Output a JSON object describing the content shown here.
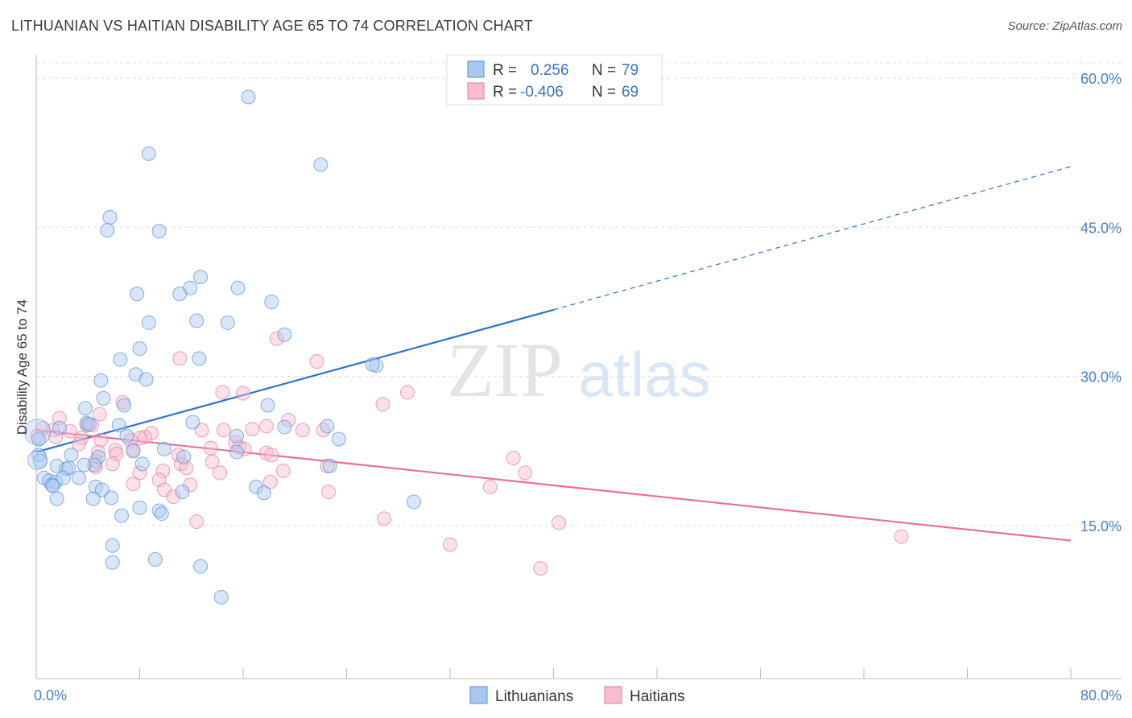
{
  "title": "LITHUANIAN VS HAITIAN DISABILITY AGE 65 TO 74 CORRELATION CHART",
  "source": "Source: ZipAtlas.com",
  "watermark": {
    "zip": "ZIP",
    "atlas": "atlas"
  },
  "legend": {
    "rows": [
      {
        "r_label": "R =",
        "r_value": "0.256",
        "n_label": "N =",
        "n_value": "79",
        "color": "#9dc3f0",
        "border": "#5b8fd6"
      },
      {
        "r_label": "R =",
        "r_value": "-0.406",
        "n_label": "N =",
        "n_value": "69",
        "color": "#f7b8cc",
        "border": "#e57a9f"
      }
    ]
  },
  "bottom_legend": [
    "Lithuanians",
    "Haitians"
  ],
  "colors": {
    "blue_fill": "#a8c8f0",
    "blue_stroke": "#5b8fd6",
    "blue_line": "#2f72cf",
    "pink_fill": "#f7bcd0",
    "pink_stroke": "#e57a9f",
    "pink_line": "#e8709a",
    "grid": "#dddddd",
    "tick_text": "#4a7fc8"
  },
  "chart_data": {
    "type": "scatter",
    "title": "LITHUANIAN VS HAITIAN DISABILITY AGE 65 TO 74 CORRELATION CHART",
    "xlabel": "",
    "ylabel": "Disability Age 65 to 74",
    "xlim": [
      0,
      80
    ],
    "ylim": [
      0,
      62
    ],
    "x_tick_labels": [
      "0.0%",
      "80.0%"
    ],
    "y_ticks": [
      15,
      30,
      45,
      60
    ],
    "y_tick_labels": [
      "15.0%",
      "30.0%",
      "45.0%",
      "60.0%"
    ],
    "grid": true,
    "series": [
      {
        "name": "Lithuanians",
        "r": 0.256,
        "n": 79,
        "trend": {
          "x0": 0,
          "y0": 22.4,
          "x1": 40,
          "y1": 36.7,
          "dashed_to_x": 80,
          "dashed_to_y": 51.1
        },
        "points": [
          [
            16.4,
            58.1
          ],
          [
            22.0,
            51.3
          ],
          [
            8.7,
            52.4
          ],
          [
            5.7,
            46.0
          ],
          [
            5.5,
            44.7
          ],
          [
            9.5,
            44.6
          ],
          [
            12.7,
            40.0
          ],
          [
            11.9,
            38.9
          ],
          [
            15.6,
            38.9
          ],
          [
            7.8,
            38.3
          ],
          [
            11.1,
            38.3
          ],
          [
            18.2,
            37.5
          ],
          [
            8.7,
            35.4
          ],
          [
            12.4,
            35.6
          ],
          [
            14.8,
            35.4
          ],
          [
            19.2,
            34.2
          ],
          [
            8.0,
            32.8
          ],
          [
            6.5,
            31.7
          ],
          [
            12.6,
            31.8
          ],
          [
            26.3,
            31.1
          ],
          [
            26.0,
            31.2
          ],
          [
            7.7,
            30.2
          ],
          [
            8.5,
            29.7
          ],
          [
            5.0,
            29.6
          ],
          [
            5.2,
            27.8
          ],
          [
            6.8,
            27.1
          ],
          [
            3.8,
            26.8
          ],
          [
            17.9,
            27.1
          ],
          [
            3.9,
            25.3
          ],
          [
            6.4,
            25.1
          ],
          [
            12.1,
            25.4
          ],
          [
            4.1,
            25.2
          ],
          [
            19.2,
            24.9
          ],
          [
            22.5,
            25.0
          ],
          [
            1.8,
            24.8
          ],
          [
            7.0,
            24.0
          ],
          [
            15.5,
            24.0
          ],
          [
            23.4,
            23.7
          ],
          [
            0.2,
            23.7
          ],
          [
            0.2,
            22.1
          ],
          [
            9.9,
            22.7
          ],
          [
            15.5,
            22.4
          ],
          [
            7.5,
            22.5
          ],
          [
            2.7,
            22.1
          ],
          [
            4.8,
            21.9
          ],
          [
            11.4,
            21.9
          ],
          [
            0.3,
            21.5
          ],
          [
            8.2,
            21.2
          ],
          [
            4.5,
            21.1
          ],
          [
            1.6,
            21.0
          ],
          [
            3.7,
            21.1
          ],
          [
            2.3,
            20.7
          ],
          [
            2.5,
            20.8
          ],
          [
            22.7,
            21.0
          ],
          [
            0.6,
            19.8
          ],
          [
            1.0,
            19.5
          ],
          [
            1.5,
            19.4
          ],
          [
            1.2,
            19.1
          ],
          [
            1.3,
            19.0
          ],
          [
            3.3,
            19.8
          ],
          [
            2.1,
            19.8
          ],
          [
            4.6,
            18.9
          ],
          [
            17.0,
            18.9
          ],
          [
            5.1,
            18.6
          ],
          [
            17.6,
            18.3
          ],
          [
            11.3,
            18.4
          ],
          [
            1.6,
            17.7
          ],
          [
            4.4,
            17.7
          ],
          [
            5.8,
            17.8
          ],
          [
            29.2,
            17.4
          ],
          [
            8.0,
            16.8
          ],
          [
            9.5,
            16.5
          ],
          [
            6.6,
            16.0
          ],
          [
            9.7,
            16.2
          ],
          [
            5.9,
            13.0
          ],
          [
            5.9,
            11.3
          ],
          [
            9.2,
            11.6
          ],
          [
            12.7,
            10.9
          ],
          [
            14.3,
            7.8
          ]
        ]
      },
      {
        "name": "Haitians",
        "r": -0.406,
        "n": 69,
        "trend": {
          "x0": 0,
          "y0": 24.6,
          "x1": 80,
          "y1": 13.5
        },
        "points": [
          [
            18.6,
            33.8
          ],
          [
            11.1,
            31.8
          ],
          [
            21.7,
            31.5
          ],
          [
            14.4,
            28.4
          ],
          [
            16.0,
            28.3
          ],
          [
            28.7,
            28.4
          ],
          [
            26.8,
            27.2
          ],
          [
            6.7,
            27.4
          ],
          [
            1.8,
            25.8
          ],
          [
            4.9,
            26.2
          ],
          [
            19.5,
            25.6
          ],
          [
            3.9,
            25.1
          ],
          [
            4.3,
            25.1
          ],
          [
            17.8,
            25.0
          ],
          [
            0.5,
            24.8
          ],
          [
            1.3,
            24.6
          ],
          [
            2.6,
            24.5
          ],
          [
            12.8,
            24.6
          ],
          [
            14.5,
            24.6
          ],
          [
            20.6,
            24.6
          ],
          [
            22.2,
            24.6
          ],
          [
            16.7,
            24.7
          ],
          [
            8.9,
            24.3
          ],
          [
            8.4,
            23.9
          ],
          [
            0.1,
            24.0
          ],
          [
            1.5,
            23.9
          ],
          [
            3.5,
            23.8
          ],
          [
            8.0,
            23.8
          ],
          [
            5.0,
            23.6
          ],
          [
            7.3,
            23.6
          ],
          [
            15.4,
            23.4
          ],
          [
            3.3,
            23.2
          ],
          [
            4.8,
            22.4
          ],
          [
            6.1,
            22.6
          ],
          [
            7.5,
            22.6
          ],
          [
            13.5,
            22.8
          ],
          [
            15.7,
            22.9
          ],
          [
            16.1,
            22.7
          ],
          [
            17.8,
            22.3
          ],
          [
            18.2,
            22.1
          ],
          [
            11.0,
            22.1
          ],
          [
            6.2,
            22.2
          ],
          [
            36.9,
            21.8
          ],
          [
            5.9,
            21.2
          ],
          [
            11.2,
            21.2
          ],
          [
            13.6,
            21.4
          ],
          [
            22.5,
            21.0
          ],
          [
            4.6,
            20.9
          ],
          [
            9.8,
            20.5
          ],
          [
            11.6,
            20.8
          ],
          [
            19.1,
            20.5
          ],
          [
            37.8,
            20.3
          ],
          [
            8.0,
            20.3
          ],
          [
            14.2,
            20.3
          ],
          [
            9.5,
            19.6
          ],
          [
            18.1,
            19.4
          ],
          [
            7.5,
            19.2
          ],
          [
            11.9,
            19.1
          ],
          [
            35.1,
            18.9
          ],
          [
            9.9,
            18.6
          ],
          [
            22.6,
            18.4
          ],
          [
            10.6,
            17.9
          ],
          [
            26.9,
            15.7
          ],
          [
            12.4,
            15.4
          ],
          [
            40.4,
            15.3
          ],
          [
            66.9,
            13.9
          ],
          [
            32.0,
            13.1
          ],
          [
            39.0,
            10.7
          ],
          [
            4.6,
            21.5
          ]
        ]
      }
    ]
  }
}
